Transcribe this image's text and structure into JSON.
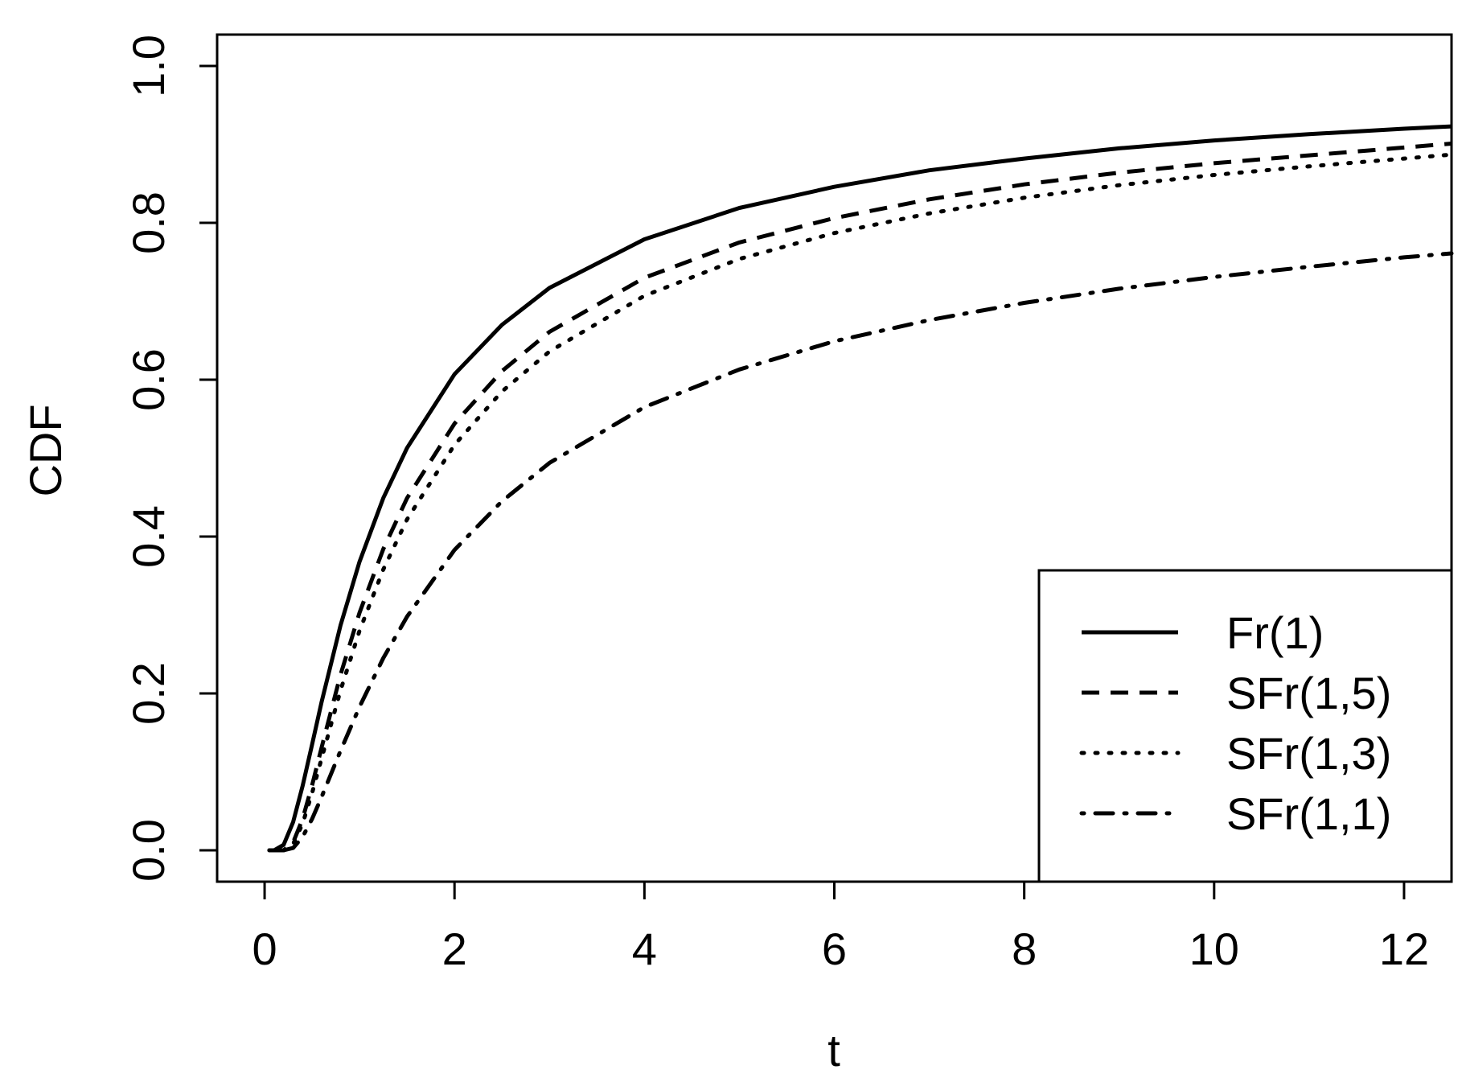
{
  "chart_data": {
    "type": "line",
    "title": "",
    "xlabel": "t",
    "ylabel": "CDF",
    "xlim": [
      -0.5,
      12.5
    ],
    "ylim": [
      -0.04,
      1.04
    ],
    "xticks": [
      "0",
      "2",
      "4",
      "6",
      "8",
      "10",
      "12"
    ],
    "yticks": [
      "0.0",
      "0.2",
      "0.4",
      "0.6",
      "0.8",
      "1.0"
    ],
    "grid": false,
    "legend_position": "bottom-right",
    "x": [
      0.05,
      0.1,
      0.2,
      0.3,
      0.4,
      0.5,
      0.6,
      0.8,
      1.0,
      1.25,
      1.5,
      2,
      2.5,
      3,
      4,
      5,
      6,
      7,
      8,
      9,
      10,
      11,
      12,
      12.5
    ],
    "series": [
      {
        "name": "Fr(1)",
        "style": "solid",
        "values": [
          0.0,
          0.0,
          0.007,
          0.036,
          0.082,
          0.135,
          0.189,
          0.287,
          0.368,
          0.449,
          0.513,
          0.607,
          0.67,
          0.717,
          0.779,
          0.819,
          0.846,
          0.867,
          0.882,
          0.895,
          0.905,
          0.913,
          0.92,
          0.923
        ]
      },
      {
        "name": "SFr(1,5)",
        "style": "dashed",
        "values": [
          0.0,
          0.0,
          0.0,
          0.01,
          0.04,
          0.083,
          0.131,
          0.224,
          0.303,
          0.384,
          0.449,
          0.544,
          0.611,
          0.661,
          0.73,
          0.775,
          0.806,
          0.83,
          0.849,
          0.864,
          0.876,
          0.886,
          0.896,
          0.901
        ]
      },
      {
        "name": "SFr(1,3)",
        "style": "dotted",
        "values": [
          0.0,
          0.0,
          0.0,
          0.008,
          0.034,
          0.073,
          0.117,
          0.204,
          0.28,
          0.358,
          0.422,
          0.517,
          0.585,
          0.636,
          0.707,
          0.754,
          0.787,
          0.812,
          0.832,
          0.848,
          0.861,
          0.872,
          0.882,
          0.887
        ]
      },
      {
        "name": "SFr(1,1)",
        "style": "dot-dash",
        "values": [
          0.0,
          0.0,
          0.0,
          0.003,
          0.017,
          0.04,
          0.068,
          0.127,
          0.183,
          0.245,
          0.298,
          0.383,
          0.445,
          0.494,
          0.565,
          0.613,
          0.649,
          0.676,
          0.698,
          0.716,
          0.731,
          0.744,
          0.756,
          0.761
        ]
      }
    ]
  }
}
